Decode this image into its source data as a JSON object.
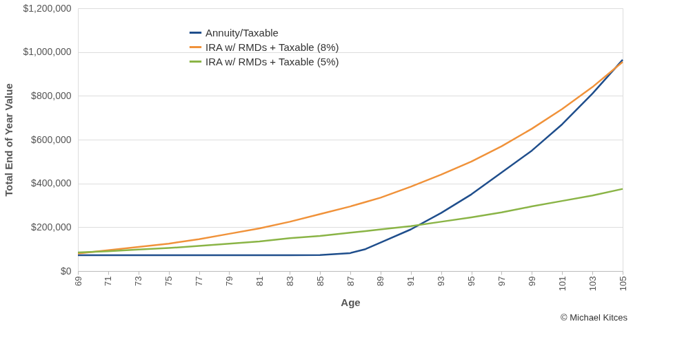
{
  "chart_data": {
    "type": "line",
    "xlabel": "Age",
    "ylabel": "Total End of Year Value",
    "x": [
      69,
      71,
      73,
      75,
      77,
      79,
      81,
      83,
      85,
      87,
      88,
      89,
      91,
      93,
      95,
      97,
      99,
      101,
      103,
      105
    ],
    "xlim": [
      69,
      105
    ],
    "xticks": [
      69,
      71,
      73,
      75,
      77,
      79,
      81,
      83,
      85,
      87,
      89,
      91,
      93,
      95,
      97,
      99,
      101,
      103,
      105
    ],
    "ylim": [
      0,
      1200000
    ],
    "yticks": [
      {
        "value": 0,
        "label": "$0"
      },
      {
        "value": 200000,
        "label": "$200,000"
      },
      {
        "value": 400000,
        "label": "$400,000"
      },
      {
        "value": 600000,
        "label": "$600,000"
      },
      {
        "value": 800000,
        "label": "$800,000"
      },
      {
        "value": 1000000,
        "label": "$1,000,000"
      },
      {
        "value": 1200000,
        "label": "$1,200,000"
      }
    ],
    "series": [
      {
        "name": "Annuity/Taxable",
        "color": "#1f4e8c",
        "values": [
          72000,
          72000,
          72000,
          72000,
          72000,
          72000,
          72000,
          72000,
          73000,
          82000,
          100000,
          130000,
          190000,
          265000,
          350000,
          450000,
          550000,
          670000,
          810000,
          965000
        ]
      },
      {
        "name": "IRA w/ RMDs + Taxable (8%)",
        "color": "#f0923a",
        "values": [
          80000,
          95000,
          110000,
          125000,
          145000,
          170000,
          195000,
          225000,
          260000,
          295000,
          315000,
          335000,
          385000,
          440000,
          500000,
          570000,
          650000,
          740000,
          840000,
          955000
        ]
      },
      {
        "name": "IRA w/ RMDs + Taxable (5%)",
        "color": "#8ab446",
        "values": [
          85000,
          90000,
          98000,
          105000,
          115000,
          125000,
          135000,
          150000,
          160000,
          175000,
          182000,
          190000,
          205000,
          225000,
          245000,
          268000,
          295000,
          320000,
          345000,
          375000
        ]
      }
    ],
    "grid": "y",
    "legend": "top left",
    "marker": "none",
    "line_style": "solid",
    "annotations": [
      "© Michael Kitces"
    ]
  }
}
